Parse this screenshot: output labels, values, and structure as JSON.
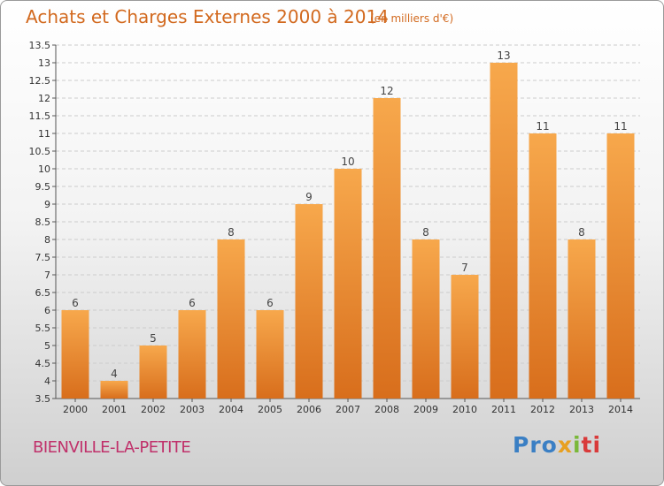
{
  "header": {
    "title": "Achats et Charges Externes 2000 à 2014",
    "subtitle": "(en milliers d'€)"
  },
  "footer": {
    "commune": "BIENVILLE-LA-PETITE",
    "logo": {
      "p1": "Pro",
      "p2": "x",
      "p3": "i",
      "p4": "ti"
    }
  },
  "colors": {
    "bar_light": "#f7a84c",
    "bar_dark": "#d86e1c",
    "title": "#d2691e",
    "commune": "#c0306a"
  },
  "chart_data": {
    "type": "bar",
    "title": "Achats et Charges Externes 2000 à 2014",
    "subtitle": "(en milliers d'€)",
    "categories": [
      "2000",
      "2001",
      "2002",
      "2003",
      "2004",
      "2005",
      "2006",
      "2007",
      "2008",
      "2009",
      "2010",
      "2011",
      "2012",
      "2013",
      "2014"
    ],
    "values": [
      6,
      4,
      5,
      6,
      8,
      6,
      9,
      10,
      12,
      8,
      7,
      13,
      11,
      8,
      11
    ],
    "value_labels": [
      "6",
      "4",
      "5",
      "6",
      "8",
      "6",
      "9",
      "10",
      "12",
      "8",
      "7",
      "13",
      "11",
      "8",
      "11"
    ],
    "ylim": [
      3.5,
      13.5
    ],
    "yticks": [
      3.5,
      4,
      4.5,
      5,
      5.5,
      6,
      6.5,
      7,
      7.5,
      8,
      8.5,
      9,
      9.5,
      10,
      10.5,
      11,
      11.5,
      12,
      12.5,
      13,
      13.5
    ],
    "ytick_labels": [
      "3.5",
      "4",
      "4.5",
      "5",
      "5.5",
      "6",
      "6.5",
      "7",
      "7.5",
      "8",
      "8.5",
      "9",
      "9.5",
      "10",
      "10.5",
      "11",
      "11.5",
      "12",
      "12.5",
      "13",
      "13.5"
    ],
    "grid": true
  }
}
